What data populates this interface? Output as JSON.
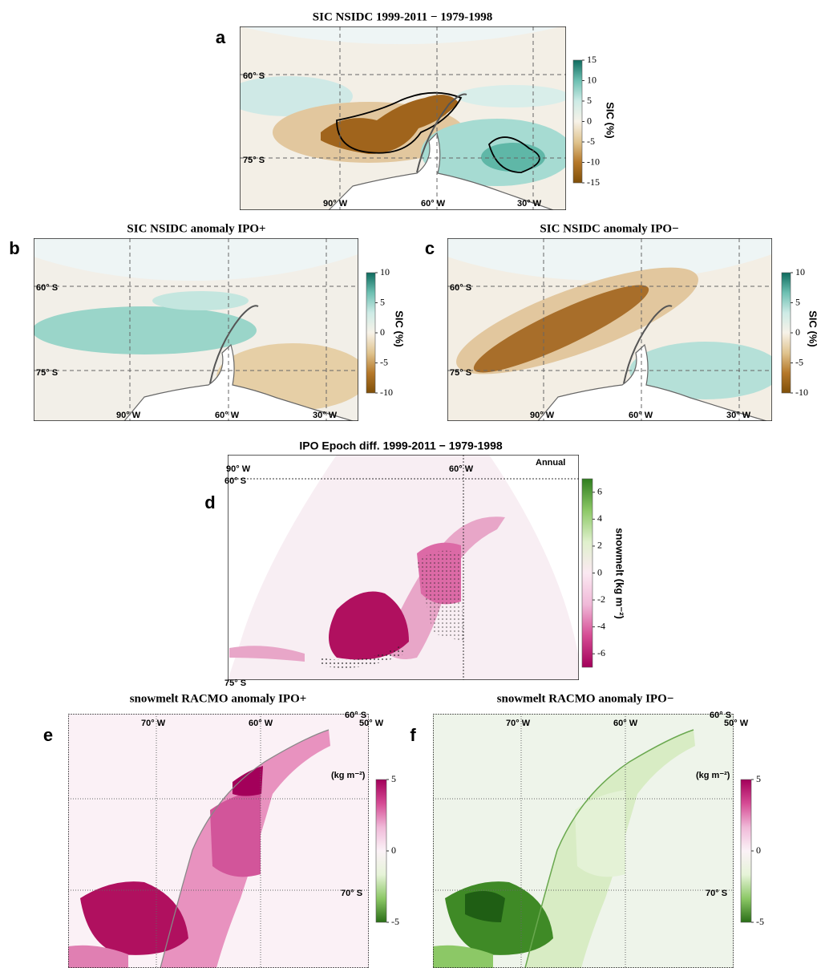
{
  "panels": [
    {
      "label": "a",
      "title": "SIC NSIDC 1999-2011 − 1979-1998",
      "map_labels": [
        "60° S",
        "75° S",
        "90° W",
        "60° W",
        "30° W"
      ],
      "colorbar": {
        "label": "SIC (%)",
        "lim": [
          -15,
          15
        ],
        "ticks": [
          15,
          10,
          5,
          0,
          -5,
          -10,
          -15
        ],
        "colors": [
          "#7f4f08",
          "#b5782a",
          "#e0c48f",
          "#f7f2e8",
          "#cdebe6",
          "#6dc0b2",
          "#0e6b5e"
        ]
      }
    },
    {
      "label": "b",
      "title": "SIC NSIDC anomaly  IPO+",
      "map_labels": [
        "60° S",
        "75° S",
        "90° W",
        "60° W",
        "30° W"
      ],
      "colorbar": {
        "label": "SIC (%)",
        "lim": [
          -10,
          10
        ],
        "ticks": [
          10,
          5,
          0,
          -5,
          -10
        ],
        "colors": [
          "#7f4f08",
          "#b5782a",
          "#e0c48f",
          "#f7f2e8",
          "#cdebe6",
          "#6dc0b2",
          "#0e6b5e"
        ]
      }
    },
    {
      "label": "c",
      "title": "SIC NSIDC anomaly  IPO−",
      "map_labels": [
        "60° S",
        "75° S",
        "90° W",
        "60° W",
        "30° W"
      ],
      "colorbar": {
        "label": "SIC (%)",
        "lim": [
          -10,
          10
        ],
        "ticks": [
          10,
          5,
          0,
          -5,
          -10
        ],
        "colors": [
          "#7f4f08",
          "#b5782a",
          "#e0c48f",
          "#f7f2e8",
          "#cdebe6",
          "#6dc0b2",
          "#0e6b5e"
        ]
      }
    },
    {
      "label": "d",
      "title": "IPO Epoch diff. 1999-2011 − 1979-1998",
      "map_labels": [
        "90° W",
        "60° W",
        "60° S",
        "75° S",
        "Annual"
      ],
      "colorbar": {
        "label": "snowmelt (kg m⁻²)",
        "lim": [
          -7,
          7
        ],
        "ticks": [
          6,
          4,
          2,
          0,
          -2,
          -4,
          -6
        ],
        "colors": [
          "#a3005a",
          "#d54b94",
          "#f0b9d8",
          "#fbe9f2",
          "#dff0cc",
          "#8cc866",
          "#2f7d1e"
        ]
      }
    },
    {
      "label": "e",
      "title": "snowmelt RACMO anomaly IPO+",
      "map_labels": [
        "70° W",
        "60° W",
        "50° W",
        "60° S",
        "70° S",
        "(kg m⁻²)"
      ],
      "colorbar": {
        "lim": [
          -5,
          5
        ],
        "ticks": [
          5,
          0,
          -5
        ],
        "colors": [
          "#2a6e17",
          "#8cc866",
          "#e6f3d8",
          "#fbf2f7",
          "#f0b9d8",
          "#d54b94",
          "#a3005a"
        ]
      }
    },
    {
      "label": "f",
      "title": "snowmelt RACMO anomaly IPO−",
      "map_labels": [
        "70° W",
        "60° W",
        "50° W",
        "60° S",
        "70° S",
        "(kg m⁻²)"
      ],
      "colorbar": {
        "lim": [
          -5,
          5
        ],
        "ticks": [
          5,
          0,
          -5
        ],
        "colors": [
          "#2a6e17",
          "#8cc866",
          "#e6f3d8",
          "#fbf2f7",
          "#f0b9d8",
          "#d54b94",
          "#a3005a"
        ]
      }
    }
  ]
}
